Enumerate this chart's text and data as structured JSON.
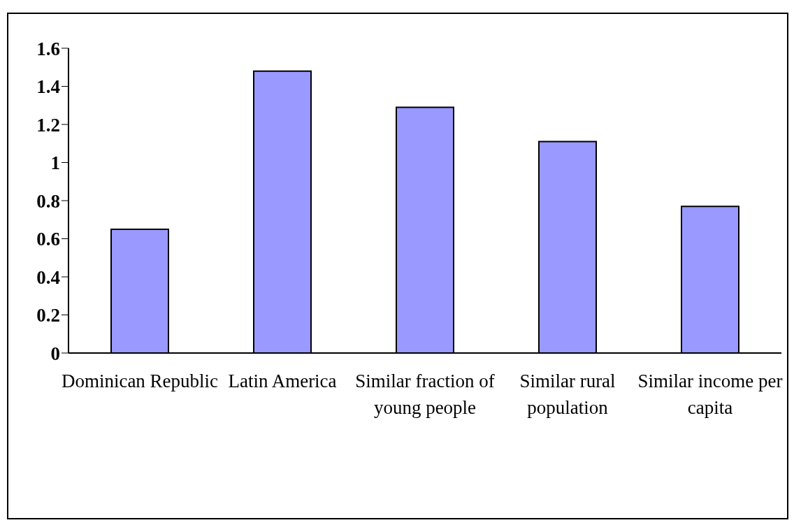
{
  "chart_data": {
    "type": "bar",
    "categories": [
      "Dominican Republic",
      "Latin America",
      "Similar fraction of young people",
      "Similar rural population",
      "Similar income per capita"
    ],
    "values": [
      0.65,
      1.48,
      1.29,
      1.11,
      0.77
    ],
    "color": "#9999ff",
    "ylim": [
      0,
      1.6
    ],
    "yticks": [
      0,
      0.2,
      0.4,
      0.6,
      0.8,
      1,
      1.2,
      1.4,
      1.6
    ],
    "grid": false,
    "legend": false
  }
}
